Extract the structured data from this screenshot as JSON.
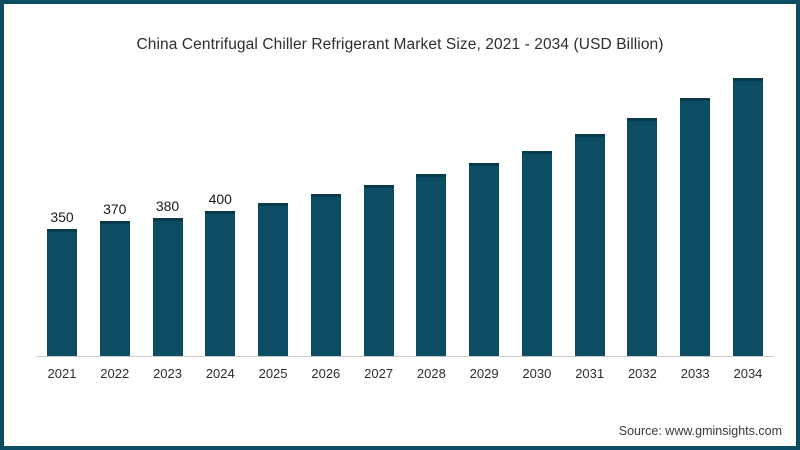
{
  "chart_data": {
    "type": "bar",
    "title": "China Centrifugal Chiller Refrigerant Market Size, 2021 - 2034 (USD Billion)",
    "categories": [
      "2021",
      "2022",
      "2023",
      "2024",
      "2025",
      "2026",
      "2027",
      "2028",
      "2029",
      "2030",
      "2031",
      "2032",
      "2033",
      "2034"
    ],
    "values": [
      350,
      370,
      380,
      400,
      420,
      445,
      470,
      500,
      530,
      565,
      610,
      655,
      710,
      765
    ],
    "data_labels": [
      "350",
      "370",
      "380",
      "400",
      "",
      "",
      "",
      "",
      "",
      "",
      "",
      "",
      "",
      ""
    ],
    "xlabel": "",
    "ylabel": "",
    "ylim": [
      0,
      800
    ],
    "grid": false,
    "legend_position": "none",
    "bar_color": "#0d4d63",
    "bar_cap_color": "#093a4c",
    "axis_color": "#cccccc"
  },
  "frame": {
    "border_color": "#0d4d63",
    "background": "#ffffff"
  },
  "source": {
    "text": "Source: www.gminsights.com"
  }
}
